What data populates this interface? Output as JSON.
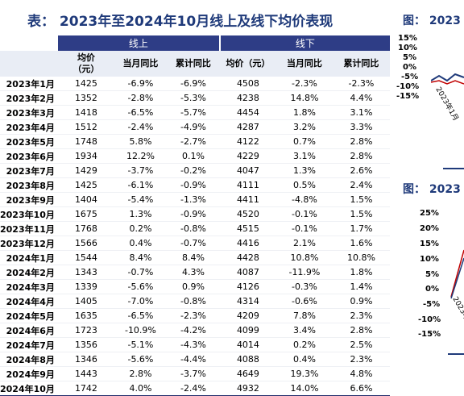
{
  "title": "表：   2023年至2024年10月线上及线下均价表现",
  "right_fig1": {
    "title": "图：   2023",
    "axis": [
      "15%",
      "10%",
      "5%",
      "0%",
      "-5%",
      "-10%",
      "-15%"
    ],
    "tick": "2023年1月"
  },
  "right_fig2": {
    "title": "图：   2023",
    "axis": [
      "25%",
      "20%",
      "15%",
      "10%",
      "5%",
      "0%",
      "-5%",
      "-10%",
      "-15%"
    ],
    "tick": "2023年"
  },
  "groups": {
    "online": "线上",
    "offline": "线下"
  },
  "headers": [
    "均价\n（元）",
    "当月同比",
    "累计同比",
    "均价（元）",
    "当月同比",
    "累计同比"
  ],
  "rows": [
    [
      "2023年1月",
      "1425",
      "-6.9%",
      "-6.9%",
      "4508",
      "-2.3%",
      "-2.3%"
    ],
    [
      "2023年2月",
      "1352",
      "-2.8%",
      "-5.3%",
      "4238",
      "14.8%",
      "4.4%"
    ],
    [
      "2023年3月",
      "1418",
      "-6.5%",
      "-5.7%",
      "4454",
      "1.8%",
      "3.1%"
    ],
    [
      "2023年4月",
      "1512",
      "-2.4%",
      "-4.9%",
      "4287",
      "3.2%",
      "3.3%"
    ],
    [
      "2023年5月",
      "1748",
      "5.8%",
      "-2.7%",
      "4122",
      "0.7%",
      "2.8%"
    ],
    [
      "2023年6月",
      "1934",
      "12.2%",
      "0.1%",
      "4229",
      "3.1%",
      "2.8%"
    ],
    [
      "2023年7月",
      "1429",
      "-3.7%",
      "-0.2%",
      "4047",
      "1.3%",
      "2.6%"
    ],
    [
      "2023年8月",
      "1425",
      "-6.1%",
      "-0.9%",
      "4111",
      "0.5%",
      "2.4%"
    ],
    [
      "2023年9月",
      "1404",
      "-5.4%",
      "-1.3%",
      "4411",
      "-4.8%",
      "1.5%"
    ],
    [
      "2023年10月",
      "1675",
      "1.3%",
      "-0.9%",
      "4520",
      "-0.1%",
      "1.5%"
    ],
    [
      "2023年11月",
      "1768",
      "0.2%",
      "-0.8%",
      "4515",
      "-0.1%",
      "1.7%"
    ],
    [
      "2023年12月",
      "1566",
      "0.4%",
      "-0.7%",
      "4416",
      "2.1%",
      "1.6%"
    ],
    [
      "2024年1月",
      "1544",
      "8.4%",
      "8.4%",
      "4428",
      "10.8%",
      "10.8%"
    ],
    [
      "2024年2月",
      "1343",
      "-0.7%",
      "4.3%",
      "4087",
      "-11.9%",
      "1.8%"
    ],
    [
      "2024年3月",
      "1339",
      "-5.6%",
      "0.9%",
      "4126",
      "-0.3%",
      "1.4%"
    ],
    [
      "2024年4月",
      "1405",
      "-7.0%",
      "-0.8%",
      "4314",
      "-0.6%",
      "0.9%"
    ],
    [
      "2024年5月",
      "1635",
      "-6.5%",
      "-2.3%",
      "4209",
      "7.8%",
      "2.3%"
    ],
    [
      "2024年6月",
      "1723",
      "-10.9%",
      "-4.2%",
      "4099",
      "3.4%",
      "2.8%"
    ],
    [
      "2024年7月",
      "1356",
      "-5.1%",
      "-4.3%",
      "4014",
      "0.2%",
      "2.5%"
    ],
    [
      "2024年8月",
      "1346",
      "-5.6%",
      "-4.4%",
      "4088",
      "0.4%",
      "2.3%"
    ],
    [
      "2024年9月",
      "1443",
      "2.8%",
      "-3.7%",
      "4649",
      "19.3%",
      "4.8%"
    ],
    [
      "2024年10月",
      "1742",
      "4.0%",
      "-2.4%",
      "4932",
      "14.0%",
      "6.6%"
    ]
  ]
}
